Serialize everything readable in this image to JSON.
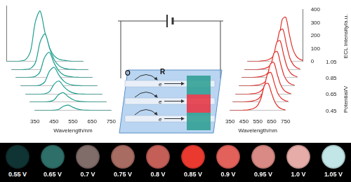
{
  "chart_data": [
    {
      "type": "line",
      "color": "#1f9e8f",
      "grid": false,
      "tick_labels": "x",
      "xlabel": "Wavelength/nm",
      "x": [
        350,
        375,
        400,
        425,
        450,
        475,
        500,
        525,
        550,
        575,
        600,
        625,
        650,
        675,
        700,
        725,
        750
      ],
      "xlim": [
        350,
        750
      ],
      "xticks": [
        350,
        450,
        550,
        650,
        750
      ],
      "ylim": [
        0,
        400
      ],
      "series": [
        {
          "potential": 0.45,
          "values": [
            0,
            0,
            0,
            0,
            2,
            8,
            30,
            38,
            22,
            10,
            4,
            2,
            1,
            0,
            0,
            0,
            0
          ]
        },
        {
          "potential": 0.55,
          "values": [
            0,
            0,
            0,
            1,
            3,
            14,
            53,
            67,
            39,
            18,
            7,
            3,
            1,
            1,
            0,
            0,
            0
          ]
        },
        {
          "potential": 0.65,
          "values": [
            0,
            0,
            0,
            1,
            4,
            20,
            75,
            95,
            55,
            25,
            10,
            4,
            2,
            1,
            0,
            0,
            0
          ]
        },
        {
          "potential": 0.75,
          "values": [
            0,
            0,
            0,
            1,
            6,
            28,
            105,
            133,
            77,
            35,
            14,
            6,
            3,
            1,
            0,
            0,
            0
          ]
        },
        {
          "potential": 0.85,
          "values": [
            0,
            0,
            0,
            2,
            8,
            38,
            143,
            181,
            105,
            48,
            19,
            8,
            4,
            2,
            0,
            0,
            0
          ]
        },
        {
          "potential": 0.95,
          "values": [
            0,
            0,
            0,
            3,
            11,
            54,
            203,
            257,
            149,
            68,
            27,
            11,
            5,
            3,
            0,
            0,
            0
          ]
        },
        {
          "potential": 1.05,
          "values": [
            0,
            0,
            0,
            4,
            15,
            76,
            285,
            361,
            209,
            95,
            38,
            15,
            8,
            4,
            0,
            0,
            0
          ]
        }
      ]
    },
    {
      "type": "line",
      "color": "#e0302a",
      "grid": false,
      "xlabel": "Wavelength/nm",
      "ylabel": "ECL Intensity/a.u.",
      "potential_label": "Potential/V",
      "potential_ticks": [
        0.45,
        0.65,
        0.85,
        1.05
      ],
      "x": [
        350,
        375,
        400,
        425,
        450,
        475,
        500,
        525,
        550,
        575,
        600,
        625,
        650,
        675,
        700,
        725,
        750
      ],
      "xlim": [
        350,
        750
      ],
      "xticks": [
        350,
        450,
        550,
        650,
        750
      ],
      "ylim": [
        0,
        400
      ],
      "yticks": [
        0,
        100,
        200,
        300,
        400
      ],
      "series": [
        {
          "potential": 0.45,
          "values": [
            0,
            0,
            0,
            0,
            2,
            4,
            9,
            18,
            40,
            99,
            198,
            209,
            132,
            62,
            26,
            11,
            4
          ]
        },
        {
          "potential": 0.55,
          "values": [
            0,
            0,
            0,
            0,
            2,
            5,
            10,
            19,
            43,
            108,
            216,
            228,
            144,
            67,
            29,
            12,
            5
          ]
        },
        {
          "potential": 0.65,
          "values": [
            0,
            0,
            0,
            0,
            3,
            5,
            10,
            21,
            47,
            117,
            234,
            247,
            156,
            73,
            31,
            13,
            5
          ]
        },
        {
          "potential": 0.75,
          "values": [
            0,
            0,
            0,
            0,
            3,
            6,
            11,
            22,
            50,
            126,
            252,
            266,
            168,
            78,
            34,
            14,
            6
          ]
        },
        {
          "potential": 0.85,
          "values": [
            0,
            0,
            0,
            0,
            3,
            6,
            12,
            24,
            54,
            135,
            270,
            285,
            180,
            84,
            36,
            15,
            6
          ]
        },
        {
          "potential": 0.95,
          "values": [
            0,
            0,
            0,
            0,
            3,
            7,
            13,
            26,
            59,
            149,
            297,
            314,
            198,
            92,
            40,
            17,
            7
          ]
        },
        {
          "potential": 1.05,
          "values": [
            0,
            0,
            0,
            0,
            4,
            7,
            14,
            29,
            65,
            162,
            324,
            342,
            216,
            101,
            43,
            18,
            7
          ]
        }
      ]
    }
  ],
  "diagram": {
    "oxidant": "O",
    "reductant": "R",
    "electron_labels": [
      "e",
      "e",
      "e"
    ]
  },
  "color_strip": [
    {
      "label": "0.55 V",
      "color": "#0f3433"
    },
    {
      "label": "0.65 V",
      "color": "#2f6f69"
    },
    {
      "label": "0.7 V",
      "color": "#806c68"
    },
    {
      "label": "0.75 V",
      "color": "#a86c63"
    },
    {
      "label": "0.8 V",
      "color": "#c45f58"
    },
    {
      "label": "0.85 V",
      "color": "#ea3a2f"
    },
    {
      "label": "0.9 V",
      "color": "#e2625b"
    },
    {
      "label": "0.95 V",
      "color": "#da8a84"
    },
    {
      "label": "1.0 V",
      "color": "#e6aca8"
    },
    {
      "label": "1.05 V",
      "color": "#c2e6e8"
    }
  ]
}
